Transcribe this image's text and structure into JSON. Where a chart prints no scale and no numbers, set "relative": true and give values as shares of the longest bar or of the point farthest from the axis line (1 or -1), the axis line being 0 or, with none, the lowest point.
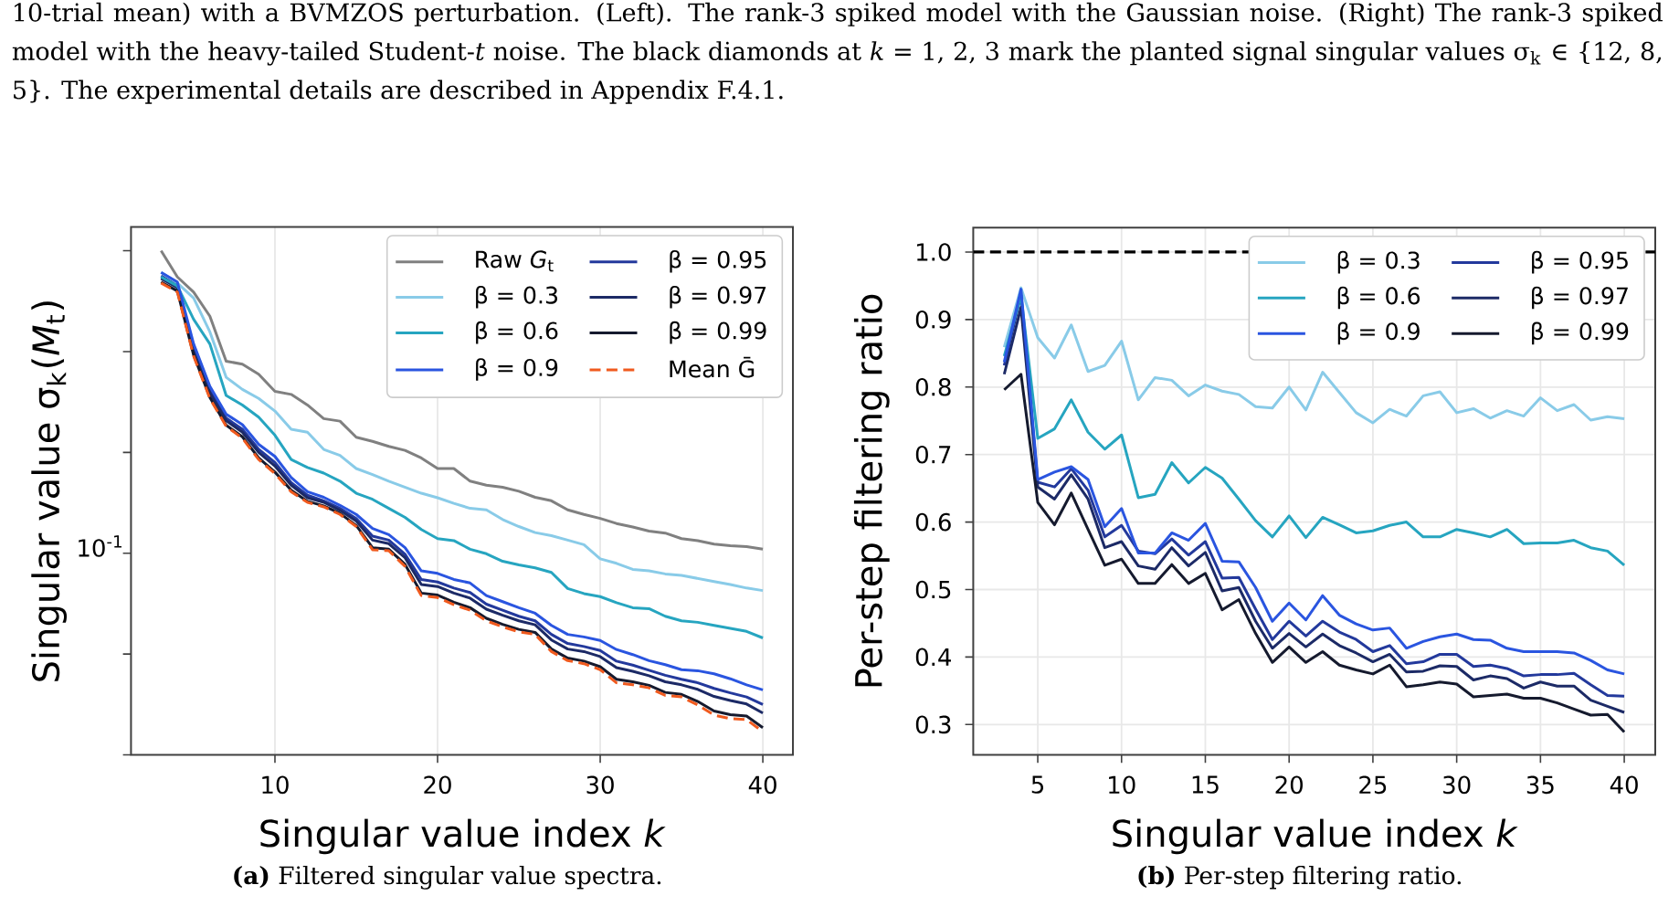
{
  "chart_data": [
    {
      "type": "line",
      "xlabel": "Singular value index *k*",
      "ylabel": "Singular value σ$_{k}$(*M*$_{t}$)",
      "annotations": [
        "10-trial mean) with a BVMZOS perturbation. (Left). The rank-3 spiked model with the Gaussian noise. (Right) The rank-3 spiked model with the heavy-tailed Student-*t* noise. The black diamonds at *k* = 1, 2, 3 mark the planted signal singular values σ$_{k}$ ∈ {12, 8, 5}. The experimental details are described in Appendix F.4.1.",
        "10$^{-1}$",
        "**(a)** Filtered singular value spectra."
      ],
      "x": [
        3,
        4,
        5,
        6,
        7,
        8,
        9,
        10,
        11,
        12,
        13,
        14,
        15,
        16,
        17,
        18,
        19,
        20,
        21,
        22,
        23,
        24,
        25,
        26,
        27,
        28,
        29,
        30,
        31,
        32,
        33,
        34,
        35,
        36,
        37,
        38,
        39,
        40
      ],
      "relative": true,
      "grid": "x",
      "legend": "top right",
      "xlim": [
        1.15,
        41.85
      ],
      "xticks": [
        10,
        20,
        30,
        40
      ],
      "series": [
        {
          "name": "Raw *G*$_{t}$",
          "color": "#808080",
          "values": [
            1.0,
            0.948,
            0.918,
            0.87,
            0.781,
            0.775,
            0.755,
            0.721,
            0.715,
            0.694,
            0.667,
            0.662,
            0.63,
            0.622,
            0.612,
            0.604,
            0.589,
            0.568,
            0.568,
            0.543,
            0.535,
            0.531,
            0.523,
            0.511,
            0.504,
            0.486,
            0.477,
            0.469,
            0.459,
            0.452,
            0.444,
            0.44,
            0.429,
            0.425,
            0.418,
            0.415,
            0.413,
            0.408
          ]
        },
        {
          "name": "β = 0.3",
          "color": "#89cbe8",
          "values": [
            0.957,
            0.936,
            0.906,
            0.839,
            0.749,
            0.725,
            0.707,
            0.682,
            0.646,
            0.64,
            0.606,
            0.594,
            0.568,
            0.556,
            0.543,
            0.531,
            0.519,
            0.51,
            0.499,
            0.489,
            0.486,
            0.467,
            0.453,
            0.441,
            0.435,
            0.426,
            0.417,
            0.389,
            0.38,
            0.368,
            0.365,
            0.359,
            0.356,
            0.35,
            0.344,
            0.338,
            0.331,
            0.326
          ]
        },
        {
          "name": "β = 0.6",
          "color": "#26a5c0",
          "values": [
            0.948,
            0.93,
            0.864,
            0.815,
            0.713,
            0.694,
            0.67,
            0.634,
            0.586,
            0.57,
            0.559,
            0.543,
            0.519,
            0.507,
            0.489,
            0.471,
            0.447,
            0.429,
            0.425,
            0.408,
            0.399,
            0.384,
            0.377,
            0.371,
            0.362,
            0.33,
            0.32,
            0.314,
            0.302,
            0.292,
            0.29,
            0.275,
            0.266,
            0.263,
            0.257,
            0.251,
            0.245,
            0.232
          ]
        },
        {
          "name": "β = 0.9",
          "color": "#2a55e0",
          "values": [
            0.957,
            0.938,
            0.815,
            0.731,
            0.676,
            0.655,
            0.616,
            0.592,
            0.55,
            0.522,
            0.511,
            0.495,
            0.477,
            0.449,
            0.437,
            0.411,
            0.365,
            0.36,
            0.348,
            0.341,
            0.316,
            0.304,
            0.292,
            0.281,
            0.257,
            0.239,
            0.234,
            0.227,
            0.209,
            0.199,
            0.187,
            0.179,
            0.169,
            0.167,
            0.161,
            0.151,
            0.139,
            0.129
          ]
        },
        {
          "name": "β = 0.95",
          "color": "#23399c",
          "values": [
            0.95,
            0.931,
            0.807,
            0.723,
            0.668,
            0.646,
            0.606,
            0.58,
            0.54,
            0.515,
            0.504,
            0.489,
            0.469,
            0.434,
            0.426,
            0.398,
            0.348,
            0.343,
            0.331,
            0.322,
            0.299,
            0.287,
            0.275,
            0.266,
            0.239,
            0.221,
            0.215,
            0.207,
            0.186,
            0.178,
            0.168,
            0.158,
            0.15,
            0.143,
            0.132,
            0.123,
            0.115,
            0.1
          ]
        },
        {
          "name": "β = 0.97",
          "color": "#1c2a66",
          "values": [
            0.945,
            0.927,
            0.802,
            0.718,
            0.663,
            0.64,
            0.6,
            0.573,
            0.535,
            0.51,
            0.501,
            0.485,
            0.464,
            0.426,
            0.419,
            0.391,
            0.338,
            0.334,
            0.321,
            0.311,
            0.289,
            0.277,
            0.266,
            0.258,
            0.228,
            0.21,
            0.205,
            0.195,
            0.173,
            0.166,
            0.157,
            0.145,
            0.139,
            0.13,
            0.116,
            0.108,
            0.101,
            0.083
          ]
        },
        {
          "name": "β = 0.99",
          "color": "#151a2e",
          "values": [
            0.938,
            0.92,
            0.793,
            0.709,
            0.654,
            0.631,
            0.589,
            0.561,
            0.525,
            0.503,
            0.494,
            0.479,
            0.455,
            0.411,
            0.408,
            0.378,
            0.321,
            0.317,
            0.303,
            0.292,
            0.271,
            0.259,
            0.249,
            0.243,
            0.21,
            0.192,
            0.186,
            0.175,
            0.15,
            0.145,
            0.138,
            0.124,
            0.12,
            0.106,
            0.087,
            0.08,
            0.077,
            0.054
          ]
        },
        {
          "name": "Mean Ḡ",
          "color": "#f05a1e",
          "line_style": "dashed",
          "values": [
            0.936,
            0.918,
            0.791,
            0.707,
            0.652,
            0.628,
            0.586,
            0.558,
            0.522,
            0.501,
            0.492,
            0.477,
            0.453,
            0.407,
            0.405,
            0.374,
            0.316,
            0.312,
            0.298,
            0.287,
            0.266,
            0.254,
            0.244,
            0.239,
            0.205,
            0.187,
            0.181,
            0.169,
            0.143,
            0.139,
            0.133,
            0.118,
            0.115,
            0.099,
            0.079,
            0.072,
            0.07,
            0.046
          ]
        }
      ]
    },
    {
      "type": "line",
      "xlabel": "Singular value index *k*",
      "ylabel": "Per-step filtering ratio",
      "annotations": [
        "**(b)** Per-step filtering ratio."
      ],
      "x": [
        3,
        4,
        5,
        6,
        7,
        8,
        9,
        10,
        11,
        12,
        13,
        14,
        15,
        16,
        17,
        18,
        19,
        20,
        21,
        22,
        23,
        24,
        25,
        26,
        27,
        28,
        29,
        30,
        31,
        32,
        33,
        34,
        35,
        36,
        37,
        38,
        39,
        40
      ],
      "grid": true,
      "legend": "top right",
      "xlim": [
        1.15,
        41.85
      ],
      "ylim": [
        0.255,
        1.036
      ],
      "xticks": [
        5,
        10,
        15,
        20,
        25,
        30,
        35,
        40
      ],
      "yticks": [
        {
          "value": 0.3,
          "label": "0.3"
        },
        {
          "value": 0.4,
          "label": "0.4"
        },
        {
          "value": 0.5,
          "label": "0.5"
        },
        {
          "value": 0.6,
          "label": "0.6"
        },
        {
          "value": 0.7,
          "label": "0.7"
        },
        {
          "value": 0.8,
          "label": "0.8"
        },
        {
          "value": 0.9,
          "label": "0.9"
        },
        {
          "value": 1.0,
          "label": "1.0"
        }
      ],
      "ref_lines": [
        {
          "axis": "y",
          "value": 1.0,
          "color": "#000000",
          "line_style": "dashed"
        }
      ],
      "series": [
        {
          "name": "β = 0.3",
          "color": "#89cbe8",
          "values": [
            0.859,
            0.947,
            0.873,
            0.843,
            0.892,
            0.823,
            0.832,
            0.868,
            0.781,
            0.814,
            0.81,
            0.787,
            0.803,
            0.794,
            0.789,
            0.771,
            0.769,
            0.8,
            0.766,
            0.822,
            0.792,
            0.762,
            0.747,
            0.767,
            0.757,
            0.787,
            0.793,
            0.762,
            0.768,
            0.754,
            0.765,
            0.757,
            0.784,
            0.765,
            0.774,
            0.751,
            0.756,
            0.753
          ]
        },
        {
          "name": "β = 0.6",
          "color": "#26a5c0",
          "values": [
            0.846,
            0.936,
            0.724,
            0.738,
            0.781,
            0.733,
            0.708,
            0.729,
            0.636,
            0.641,
            0.688,
            0.658,
            0.681,
            0.665,
            0.634,
            0.602,
            0.578,
            0.609,
            0.577,
            0.607,
            0.596,
            0.584,
            0.587,
            0.595,
            0.6,
            0.578,
            0.578,
            0.589,
            0.584,
            0.578,
            0.589,
            0.568,
            0.569,
            0.569,
            0.573,
            0.562,
            0.557,
            0.536
          ]
        },
        {
          "name": "β = 0.9",
          "color": "#2a55e0",
          "values": [
            0.837,
            0.945,
            0.663,
            0.674,
            0.682,
            0.663,
            0.593,
            0.62,
            0.554,
            0.554,
            0.584,
            0.573,
            0.598,
            0.542,
            0.541,
            0.503,
            0.453,
            0.48,
            0.455,
            0.491,
            0.462,
            0.449,
            0.44,
            0.443,
            0.413,
            0.423,
            0.43,
            0.434,
            0.426,
            0.425,
            0.413,
            0.408,
            0.408,
            0.408,
            0.406,
            0.395,
            0.381,
            0.375
          ]
        },
        {
          "name": "β = 0.95",
          "color": "#23399c",
          "values": [
            0.832,
            0.936,
            0.659,
            0.652,
            0.679,
            0.647,
            0.578,
            0.595,
            0.557,
            0.553,
            0.575,
            0.551,
            0.571,
            0.517,
            0.518,
            0.471,
            0.426,
            0.453,
            0.431,
            0.453,
            0.437,
            0.426,
            0.408,
            0.417,
            0.39,
            0.393,
            0.404,
            0.404,
            0.386,
            0.388,
            0.383,
            0.372,
            0.374,
            0.374,
            0.376,
            0.359,
            0.343,
            0.342
          ]
        },
        {
          "name": "β = 0.97",
          "color": "#1c2a66",
          "values": [
            0.819,
            0.918,
            0.652,
            0.634,
            0.67,
            0.634,
            0.562,
            0.571,
            0.535,
            0.53,
            0.562,
            0.535,
            0.555,
            0.498,
            0.503,
            0.453,
            0.413,
            0.435,
            0.415,
            0.434,
            0.417,
            0.406,
            0.393,
            0.404,
            0.378,
            0.379,
            0.387,
            0.386,
            0.366,
            0.372,
            0.368,
            0.354,
            0.363,
            0.357,
            0.357,
            0.336,
            0.327,
            0.318
          ]
        },
        {
          "name": "β = 0.99",
          "color": "#151a2e",
          "values": [
            0.796,
            0.819,
            0.629,
            0.596,
            0.643,
            0.589,
            0.536,
            0.545,
            0.509,
            0.509,
            0.537,
            0.509,
            0.524,
            0.47,
            0.485,
            0.435,
            0.392,
            0.415,
            0.392,
            0.408,
            0.388,
            0.381,
            0.375,
            0.388,
            0.356,
            0.359,
            0.363,
            0.36,
            0.341,
            0.343,
            0.345,
            0.339,
            0.339,
            0.332,
            0.323,
            0.314,
            0.315,
            0.289
          ]
        }
      ]
    }
  ]
}
